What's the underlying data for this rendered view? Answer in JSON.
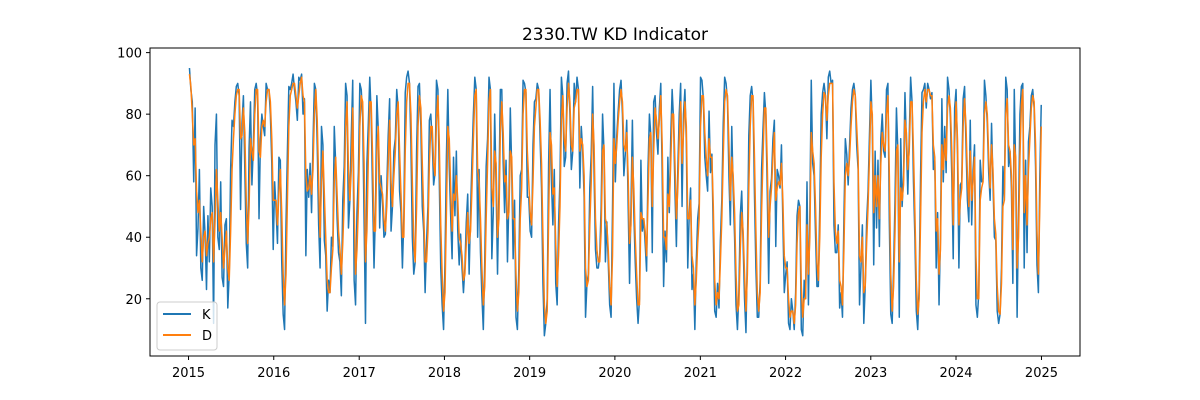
{
  "chart_data": {
    "type": "line",
    "title": "2330.TW KD Indicator",
    "xlabel": "",
    "ylabel": "",
    "x_range": [
      "2014-07-20",
      "2025-06-15"
    ],
    "ylim": [
      1.4,
      101.5
    ],
    "x_ticks": [
      {
        "label": "2015",
        "date": "2015-01-01"
      },
      {
        "label": "2016",
        "date": "2016-01-01"
      },
      {
        "label": "2017",
        "date": "2017-01-01"
      },
      {
        "label": "2018",
        "date": "2018-01-01"
      },
      {
        "label": "2019",
        "date": "2019-01-01"
      },
      {
        "label": "2020",
        "date": "2020-01-01"
      },
      {
        "label": "2021",
        "date": "2021-01-01"
      },
      {
        "label": "2022",
        "date": "2022-01-01"
      },
      {
        "label": "2023",
        "date": "2023-01-01"
      },
      {
        "label": "2024",
        "date": "2024-01-01"
      },
      {
        "label": "2025",
        "date": "2025-01-01"
      }
    ],
    "y_ticks": [
      20,
      40,
      60,
      80,
      100
    ],
    "grid": false,
    "legend": {
      "position": "lower-left"
    },
    "series": [
      {
        "name": "K",
        "color": "#1f77b4",
        "x_start": "2015-01-05",
        "x_end": "2024-12-31",
        "values": [
          95,
          88,
          84,
          58,
          82,
          34,
          43,
          62,
          30,
          26,
          50,
          41,
          23,
          47,
          32,
          56,
          50,
          12,
          70,
          80,
          40,
          36,
          58,
          27,
          24,
          44,
          46,
          17,
          28,
          62,
          78,
          76,
          84,
          89,
          90,
          86,
          49,
          77,
          86,
          62,
          38,
          30,
          69,
          84,
          57,
          70,
          88,
          90,
          86,
          46,
          72,
          80,
          76,
          73,
          90,
          88,
          88,
          80,
          64,
          36,
          58,
          49,
          38,
          66,
          65,
          32,
          15,
          10,
          44,
          68,
          89,
          88,
          90,
          93,
          88,
          84,
          78,
          92,
          91,
          93,
          80,
          85,
          34,
          62,
          53,
          64,
          48,
          70,
          90,
          88,
          70,
          44,
          30,
          76,
          70,
          39,
          34,
          16,
          26,
          22,
          40,
          37,
          76,
          64,
          46,
          35,
          32,
          21,
          52,
          63,
          90,
          86,
          43,
          52,
          73,
          91,
          26,
          18,
          48,
          61,
          90,
          88,
          79,
          46,
          12,
          64,
          77,
          92,
          80,
          54,
          30,
          48,
          86,
          75,
          43,
          60,
          51,
          40,
          41,
          56,
          73,
          85,
          42,
          50,
          68,
          72,
          88,
          82,
          55,
          48,
          30,
          46,
          87,
          92,
          94,
          90,
          70,
          40,
          28,
          32,
          68,
          89,
          90,
          76,
          50,
          42,
          22,
          38,
          50,
          78,
          80,
          71,
          57,
          61,
          91,
          88,
          58,
          30,
          18,
          10,
          32,
          66,
          88,
          63,
          47,
          33,
          66,
          47,
          68,
          42,
          31,
          41,
          30,
          22,
          30,
          45,
          54,
          28,
          48,
          65,
          80,
          92,
          88,
          40,
          62,
          35,
          21,
          10,
          32,
          63,
          72,
          92,
          88,
          33,
          48,
          80,
          57,
          28,
          55,
          88,
          88,
          64,
          48,
          65,
          32,
          52,
          82,
          62,
          33,
          52,
          14,
          10,
          30,
          60,
          62,
          91,
          90,
          87,
          53,
          53,
          42,
          40,
          70,
          84,
          85,
          90,
          88,
          72,
          56,
          25,
          8,
          12,
          20,
          64,
          88,
          58,
          44,
          62,
          25,
          18,
          44,
          59,
          92,
          86,
          63,
          66,
          90,
          94,
          80,
          62,
          68,
          90,
          84,
          92,
          88,
          56,
          76,
          68,
          53,
          14,
          25,
          28,
          56,
          67,
          89,
          61,
          36,
          30,
          30,
          34,
          50,
          80,
          68,
          32,
          45,
          32,
          18,
          14,
          49,
          90,
          58,
          73,
          81,
          88,
          91,
          80,
          60,
          67,
          78,
          51,
          25,
          50,
          78,
          48,
          32,
          20,
          12,
          20,
          65,
          42,
          46,
          38,
          29,
          62,
          80,
          73,
          35,
          84,
          86,
          74,
          67,
          82,
          90,
          60,
          24,
          42,
          32,
          66,
          48,
          72,
          88,
          78,
          55,
          37,
          62,
          80,
          90,
          50,
          80,
          88,
          71,
          30,
          47,
          56,
          23,
          28,
          10,
          32,
          46,
          51,
          92,
          91,
          85,
          66,
          60,
          55,
          81,
          61,
          67,
          41,
          16,
          14,
          25,
          17,
          39,
          52,
          77,
          92,
          90,
          84,
          60,
          44,
          76,
          55,
          40,
          18,
          10,
          22,
          47,
          55,
          38,
          20,
          9,
          35,
          73,
          86,
          89,
          84,
          54,
          30,
          14,
          14,
          26,
          62,
          75,
          87,
          80,
          55,
          25,
          55,
          59,
          72,
          78,
          37,
          62,
          60,
          56,
          70,
          45,
          22,
          28,
          32,
          12,
          10,
          20,
          16,
          10,
          22,
          47,
          52,
          50,
          10,
          8,
          26,
          20,
          58,
          18,
          48,
          91,
          64,
          60,
          41,
          24,
          24,
          50,
          80,
          87,
          90,
          86,
          72,
          92,
          94,
          90,
          91,
          44,
          35,
          35,
          44,
          17,
          22,
          14,
          46,
          72,
          67,
          57,
          70,
          82,
          88,
          90,
          86,
          70,
          62,
          18,
          30,
          44,
          12,
          24,
          45,
          55,
          73,
          91,
          76,
          31,
          68,
          43,
          65,
          37,
          72,
          80,
          68,
          66,
          88,
          90,
          45,
          15,
          12,
          30,
          52,
          82,
          68,
          14,
          72,
          50,
          60,
          87,
          71,
          54,
          72,
          92,
          84,
          58,
          40,
          16,
          10,
          24,
          60,
          87,
          88,
          90,
          82,
          90,
          88,
          85,
          87,
          62,
          65,
          30,
          48,
          18,
          40,
          85,
          58,
          76,
          61,
          92,
          88,
          79,
          60,
          33,
          82,
          88,
          67,
          30,
          57,
          58,
          85,
          89,
          70,
          52,
          45,
          78,
          44,
          62,
          70,
          18,
          14,
          22,
          65,
          58,
          59,
          91,
          86,
          77,
          61,
          52,
          77,
          58,
          40,
          39,
          16,
          12,
          15,
          30,
          63,
          52,
          92,
          88,
          63,
          68,
          56,
          25,
          88,
          62,
          14,
          48,
          80,
          89,
          90,
          30,
          65,
          35,
          71,
          76,
          86,
          88,
          82,
          63,
          31,
          22,
          60,
          83
        ]
      },
      {
        "name": "D",
        "color": "#ff7f0e",
        "x_start": "2015-01-05",
        "x_end": "2024-12-31",
        "values": [
          93,
          89,
          80,
          70,
          72,
          55,
          48,
          52,
          42,
          32,
          40,
          42,
          34,
          38,
          40,
          46,
          48,
          32,
          45,
          62,
          52,
          42,
          48,
          40,
          30,
          36,
          42,
          30,
          26,
          42,
          62,
          72,
          80,
          86,
          88,
          88,
          72,
          73,
          82,
          74,
          52,
          38,
          50,
          72,
          68,
          65,
          80,
          88,
          88,
          68,
          66,
          76,
          78,
          76,
          84,
          88,
          88,
          84,
          72,
          52,
          52,
          52,
          44,
          54,
          62,
          48,
          28,
          18,
          28,
          52,
          76,
          86,
          88,
          90,
          90,
          86,
          82,
          86,
          90,
          92,
          86,
          84,
          60,
          55,
          56,
          60,
          54,
          62,
          80,
          88,
          78,
          58,
          40,
          58,
          68,
          54,
          40,
          26,
          22,
          22,
          30,
          36,
          58,
          66,
          54,
          42,
          36,
          28,
          38,
          52,
          76,
          84,
          62,
          52,
          62,
          82,
          50,
          28,
          36,
          50,
          76,
          86,
          84,
          64,
          32,
          42,
          66,
          84,
          84,
          66,
          42,
          42,
          68,
          76,
          58,
          56,
          54,
          46,
          42,
          50,
          64,
          78,
          58,
          50,
          60,
          68,
          80,
          84,
          68,
          54,
          40,
          40,
          68,
          84,
          90,
          90,
          80,
          58,
          38,
          32,
          50,
          76,
          86,
          82,
          64,
          48,
          32,
          32,
          42,
          64,
          76,
          76,
          64,
          60,
          78,
          86,
          70,
          44,
          28,
          16,
          22,
          48,
          76,
          72,
          56,
          42,
          54,
          52,
          60,
          52,
          40,
          38,
          34,
          26,
          28,
          38,
          48,
          38,
          42,
          56,
          72,
          86,
          88,
          62,
          58,
          46,
          30,
          18,
          24,
          46,
          64,
          84,
          88,
          56,
          50,
          68,
          64,
          40,
          46,
          74,
          84,
          74,
          58,
          60,
          46,
          48,
          68,
          66,
          46,
          46,
          28,
          16,
          22,
          46,
          56,
          80,
          88,
          88,
          68,
          58,
          48,
          44,
          58,
          76,
          82,
          88,
          88,
          78,
          64,
          40,
          18,
          12,
          16,
          46,
          74,
          70,
          54,
          56,
          38,
          24,
          34,
          50,
          78,
          86,
          72,
          68,
          82,
          90,
          84,
          70,
          68,
          82,
          84,
          88,
          88,
          68,
          72,
          70,
          60,
          30,
          24,
          26,
          44,
          58,
          80,
          70,
          46,
          36,
          32,
          32,
          42,
          68,
          70,
          46,
          44,
          36,
          24,
          18,
          34,
          72,
          64,
          70,
          78,
          84,
          88,
          84,
          70,
          68,
          74,
          60,
          38,
          44,
          66,
          56,
          40,
          28,
          18,
          18,
          48,
          46,
          46,
          42,
          34,
          52,
          72,
          74,
          50,
          68,
          82,
          78,
          72,
          78,
          86,
          70,
          40,
          40,
          36,
          54,
          50,
          64,
          80,
          80,
          64,
          46,
          56,
          72,
          84,
          64,
          74,
          84,
          76,
          46,
          46,
          52,
          34,
          30,
          18,
          26,
          38,
          46,
          76,
          86,
          86,
          74,
          66,
          60,
          72,
          66,
          66,
          50,
          26,
          18,
          22,
          20,
          32,
          46,
          66,
          84,
          88,
          86,
          70,
          52,
          66,
          60,
          48,
          28,
          16,
          18,
          36,
          48,
          42,
          28,
          16,
          28,
          56,
          76,
          86,
          86,
          66,
          42,
          22,
          16,
          22,
          48,
          66,
          82,
          82,
          64,
          40,
          50,
          56,
          66,
          74,
          52,
          56,
          58,
          57,
          64,
          52,
          34,
          30,
          30,
          20,
          14,
          16,
          16,
          12,
          18,
          38,
          48,
          50,
          24,
          14,
          20,
          20,
          44,
          28,
          40,
          74,
          68,
          64,
          50,
          32,
          26,
          40,
          66,
          80,
          87,
          86,
          78,
          86,
          90,
          90,
          90,
          58,
          42,
          38,
          42,
          26,
          24,
          18,
          36,
          60,
          64,
          60,
          66,
          76,
          84,
          88,
          86,
          76,
          66,
          34,
          32,
          40,
          22,
          24,
          38,
          50,
          66,
          84,
          80,
          48,
          60,
          50,
          60,
          46,
          64,
          74,
          70,
          68,
          80,
          86,
          60,
          28,
          16,
          24,
          42,
          68,
          70,
          32,
          56,
          52,
          57,
          78,
          74,
          62,
          68,
          84,
          84,
          68,
          48,
          26,
          15,
          20,
          46,
          74,
          84,
          88,
          84,
          88,
          88,
          86,
          86,
          70,
          66,
          42,
          46,
          28,
          36,
          70,
          62,
          72,
          65,
          82,
          86,
          82,
          68,
          44,
          70,
          84,
          72,
          44,
          52,
          56,
          76,
          85,
          76,
          60,
          50,
          68,
          52,
          58,
          66,
          34,
          20,
          20,
          52,
          56,
          58,
          80,
          84,
          80,
          66,
          56,
          70,
          62,
          46,
          41,
          24,
          16,
          15,
          25,
          50,
          52,
          80,
          85,
          70,
          68,
          60,
          36,
          70,
          66,
          30,
          40,
          66,
          83,
          88,
          48,
          60,
          44,
          62,
          72,
          82,
          86,
          84,
          70,
          42,
          28,
          50,
          76
        ]
      }
    ]
  }
}
